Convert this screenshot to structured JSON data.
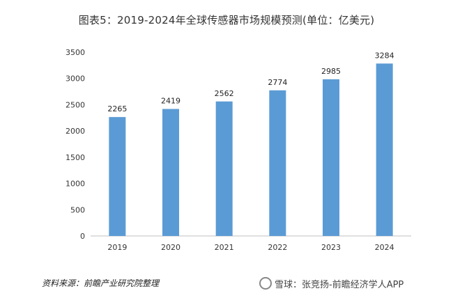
{
  "chart_data": {
    "type": "bar",
    "title": "图表5：2019-2024年全球传感器市场规模预测(单位：亿美元)",
    "categories": [
      "2019",
      "2020",
      "2021",
      "2022",
      "2023",
      "2024"
    ],
    "values": [
      2265,
      2419,
      2562,
      2774,
      2985,
      3284
    ],
    "ylim": [
      0,
      3500
    ],
    "yticks": [
      0,
      500,
      1000,
      1500,
      2000,
      2500,
      3000,
      3500
    ],
    "xlabel": "",
    "ylabel": "",
    "grid": false,
    "bar_color": "#5b9bd5"
  },
  "footer": {
    "source": "资料来源：前瞻产业研究院整理",
    "watermark": "雪球：张竞扬-前瞻经济学人APP"
  }
}
